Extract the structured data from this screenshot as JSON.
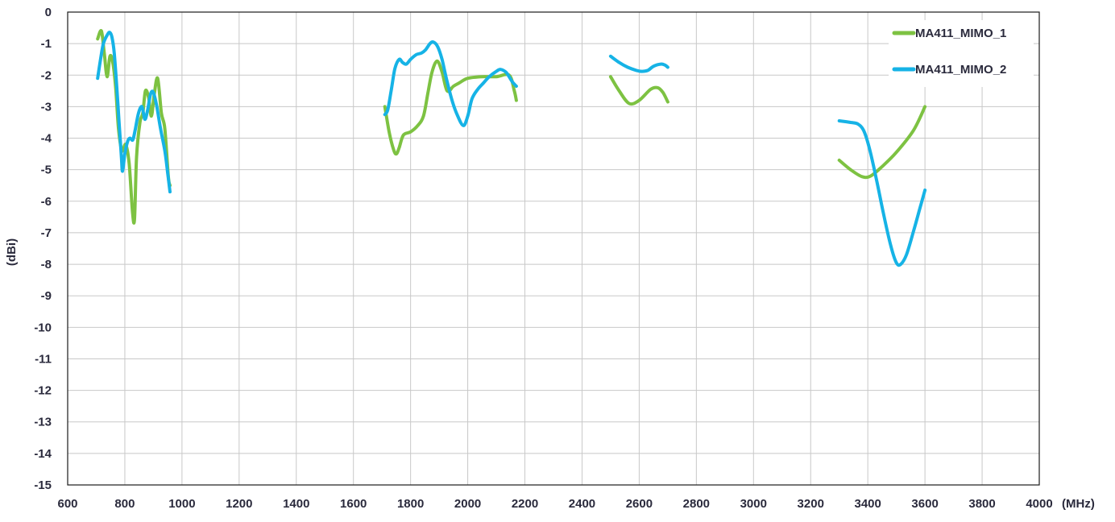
{
  "chart_data": {
    "type": "line",
    "title": "",
    "xlabel": "",
    "ylabel": "(dBi)",
    "x_unit": "(MHz)",
    "xlim": [
      600,
      4000
    ],
    "ylim": [
      -15,
      0
    ],
    "x_ticks": [
      600,
      800,
      1000,
      1200,
      1400,
      1600,
      1800,
      2000,
      2200,
      2400,
      2600,
      2800,
      3000,
      3200,
      3400,
      3600,
      3800,
      4000
    ],
    "y_ticks": [
      0,
      -1,
      -2,
      -3,
      -4,
      -5,
      -6,
      -7,
      -8,
      -9,
      -10,
      -11,
      -12,
      -13,
      -14,
      -15
    ],
    "grid": true,
    "legend_position": "top-right",
    "series": [
      {
        "name": "MA411_MIMO_1",
        "color": "#7dc242",
        "segments": [
          [
            [
              705,
              -0.85
            ],
            [
              718,
              -0.6
            ],
            [
              728,
              -1.3
            ],
            [
              738,
              -2.05
            ],
            [
              748,
              -1.4
            ],
            [
              758,
              -1.6
            ],
            [
              768,
              -2.4
            ],
            [
              778,
              -3.7
            ],
            [
              790,
              -4.4
            ],
            [
              803,
              -4.2
            ],
            [
              815,
              -4.8
            ],
            [
              827,
              -6.35
            ],
            [
              834,
              -6.55
            ],
            [
              841,
              -4.6
            ],
            [
              853,
              -3.5
            ],
            [
              863,
              -3.2
            ],
            [
              872,
              -2.5
            ],
            [
              883,
              -2.7
            ],
            [
              893,
              -3.3
            ],
            [
              903,
              -2.6
            ],
            [
              915,
              -2.1
            ],
            [
              928,
              -3.2
            ],
            [
              940,
              -3.7
            ],
            [
              952,
              -5.2
            ],
            [
              958,
              -5.5
            ]
          ],
          [
            [
              1710,
              -3.0
            ],
            [
              1725,
              -3.8
            ],
            [
              1740,
              -4.35
            ],
            [
              1750,
              -4.5
            ],
            [
              1760,
              -4.3
            ],
            [
              1775,
              -3.9
            ],
            [
              1800,
              -3.8
            ],
            [
              1825,
              -3.6
            ],
            [
              1845,
              -3.3
            ],
            [
              1860,
              -2.6
            ],
            [
              1875,
              -1.9
            ],
            [
              1893,
              -1.55
            ],
            [
              1910,
              -1.9
            ],
            [
              1928,
              -2.5
            ],
            [
              1950,
              -2.35
            ],
            [
              1970,
              -2.25
            ],
            [
              2000,
              -2.1
            ],
            [
              2050,
              -2.05
            ],
            [
              2100,
              -2.05
            ],
            [
              2145,
              -2.0
            ],
            [
              2163,
              -2.5
            ],
            [
              2170,
              -2.8
            ]
          ],
          [
            [
              2500,
              -2.05
            ],
            [
              2530,
              -2.5
            ],
            [
              2565,
              -2.9
            ],
            [
              2600,
              -2.8
            ],
            [
              2640,
              -2.45
            ],
            [
              2665,
              -2.4
            ],
            [
              2683,
              -2.55
            ],
            [
              2700,
              -2.85
            ]
          ],
          [
            [
              3300,
              -4.7
            ],
            [
              3340,
              -5.0
            ],
            [
              3380,
              -5.22
            ],
            [
              3410,
              -5.2
            ],
            [
              3450,
              -4.9
            ],
            [
              3500,
              -4.45
            ],
            [
              3560,
              -3.75
            ],
            [
              3600,
              -3.0
            ]
          ]
        ]
      },
      {
        "name": "MA411_MIMO_2",
        "color": "#16b3e6",
        "segments": [
          [
            [
              705,
              -2.1
            ],
            [
              715,
              -1.5
            ],
            [
              725,
              -1.0
            ],
            [
              740,
              -0.7
            ],
            [
              748,
              -0.65
            ],
            [
              755,
              -0.8
            ],
            [
              763,
              -1.3
            ],
            [
              772,
              -2.4
            ],
            [
              780,
              -3.5
            ],
            [
              788,
              -4.6
            ],
            [
              792,
              -5.05
            ],
            [
              800,
              -4.5
            ],
            [
              810,
              -4.1
            ],
            [
              818,
              -4.0
            ],
            [
              828,
              -4.05
            ],
            [
              837,
              -3.7
            ],
            [
              848,
              -3.2
            ],
            [
              860,
              -3.0
            ],
            [
              870,
              -3.4
            ],
            [
              880,
              -3.1
            ],
            [
              890,
              -2.6
            ],
            [
              900,
              -2.55
            ],
            [
              912,
              -3.0
            ],
            [
              925,
              -3.7
            ],
            [
              940,
              -4.4
            ],
            [
              950,
              -5.1
            ],
            [
              958,
              -5.7
            ]
          ],
          [
            [
              1710,
              -3.25
            ],
            [
              1720,
              -3.1
            ],
            [
              1732,
              -2.5
            ],
            [
              1745,
              -1.8
            ],
            [
              1760,
              -1.5
            ],
            [
              1772,
              -1.6
            ],
            [
              1785,
              -1.65
            ],
            [
              1800,
              -1.5
            ],
            [
              1820,
              -1.35
            ],
            [
              1838,
              -1.3
            ],
            [
              1852,
              -1.2
            ],
            [
              1868,
              -1.0
            ],
            [
              1880,
              -0.95
            ],
            [
              1895,
              -1.1
            ],
            [
              1910,
              -1.5
            ],
            [
              1925,
              -2.1
            ],
            [
              1945,
              -2.8
            ],
            [
              1965,
              -3.3
            ],
            [
              1985,
              -3.6
            ],
            [
              2000,
              -3.3
            ],
            [
              2015,
              -2.75
            ],
            [
              2035,
              -2.45
            ],
            [
              2055,
              -2.25
            ],
            [
              2075,
              -2.05
            ],
            [
              2100,
              -1.88
            ],
            [
              2115,
              -1.82
            ],
            [
              2135,
              -1.92
            ],
            [
              2155,
              -2.2
            ],
            [
              2170,
              -2.35
            ]
          ],
          [
            [
              2500,
              -1.4
            ],
            [
              2530,
              -1.6
            ],
            [
              2560,
              -1.75
            ],
            [
              2590,
              -1.85
            ],
            [
              2610,
              -1.88
            ],
            [
              2630,
              -1.85
            ],
            [
              2650,
              -1.72
            ],
            [
              2675,
              -1.65
            ],
            [
              2690,
              -1.68
            ],
            [
              2700,
              -1.75
            ]
          ],
          [
            [
              3300,
              -3.45
            ],
            [
              3340,
              -3.5
            ],
            [
              3365,
              -3.55
            ],
            [
              3385,
              -3.75
            ],
            [
              3405,
              -4.3
            ],
            [
              3430,
              -5.3
            ],
            [
              3455,
              -6.4
            ],
            [
              3480,
              -7.4
            ],
            [
              3500,
              -7.95
            ],
            [
              3515,
              -8.0
            ],
            [
              3535,
              -7.7
            ],
            [
              3560,
              -6.95
            ],
            [
              3580,
              -6.3
            ],
            [
              3600,
              -5.65
            ]
          ]
        ]
      }
    ]
  }
}
